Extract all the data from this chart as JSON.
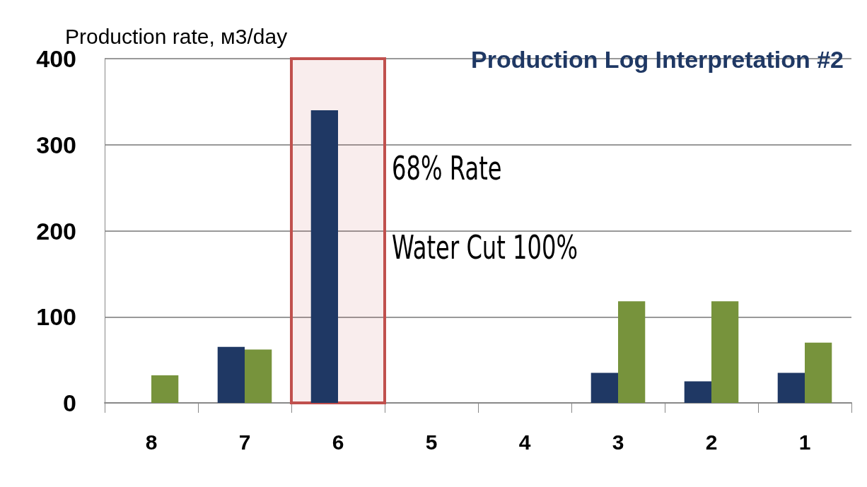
{
  "chart_data": {
    "type": "bar",
    "title": "Production Log Interpretation #2",
    "ylabel": "Production rate, м3/day",
    "categories": [
      "8",
      "7",
      "6",
      "5",
      "4",
      "3",
      "2",
      "1"
    ],
    "series": [
      {
        "color": "#1f3864",
        "values": [
          0,
          65,
          340,
          0,
          0,
          35,
          25,
          35
        ]
      },
      {
        "color": "#77933c",
        "values": [
          32,
          62,
          0,
          0,
          0,
          118,
          118,
          70
        ]
      }
    ],
    "ylim": [
      0,
      400
    ],
    "yticks": [
      0,
      100,
      200,
      300,
      400
    ],
    "grid": "y",
    "bands": [
      {
        "axis": "x",
        "from": "6",
        "to": "6",
        "color": "#c0504d"
      }
    ],
    "annotations": [
      "68% Rate",
      "Water Cut 100%"
    ]
  }
}
